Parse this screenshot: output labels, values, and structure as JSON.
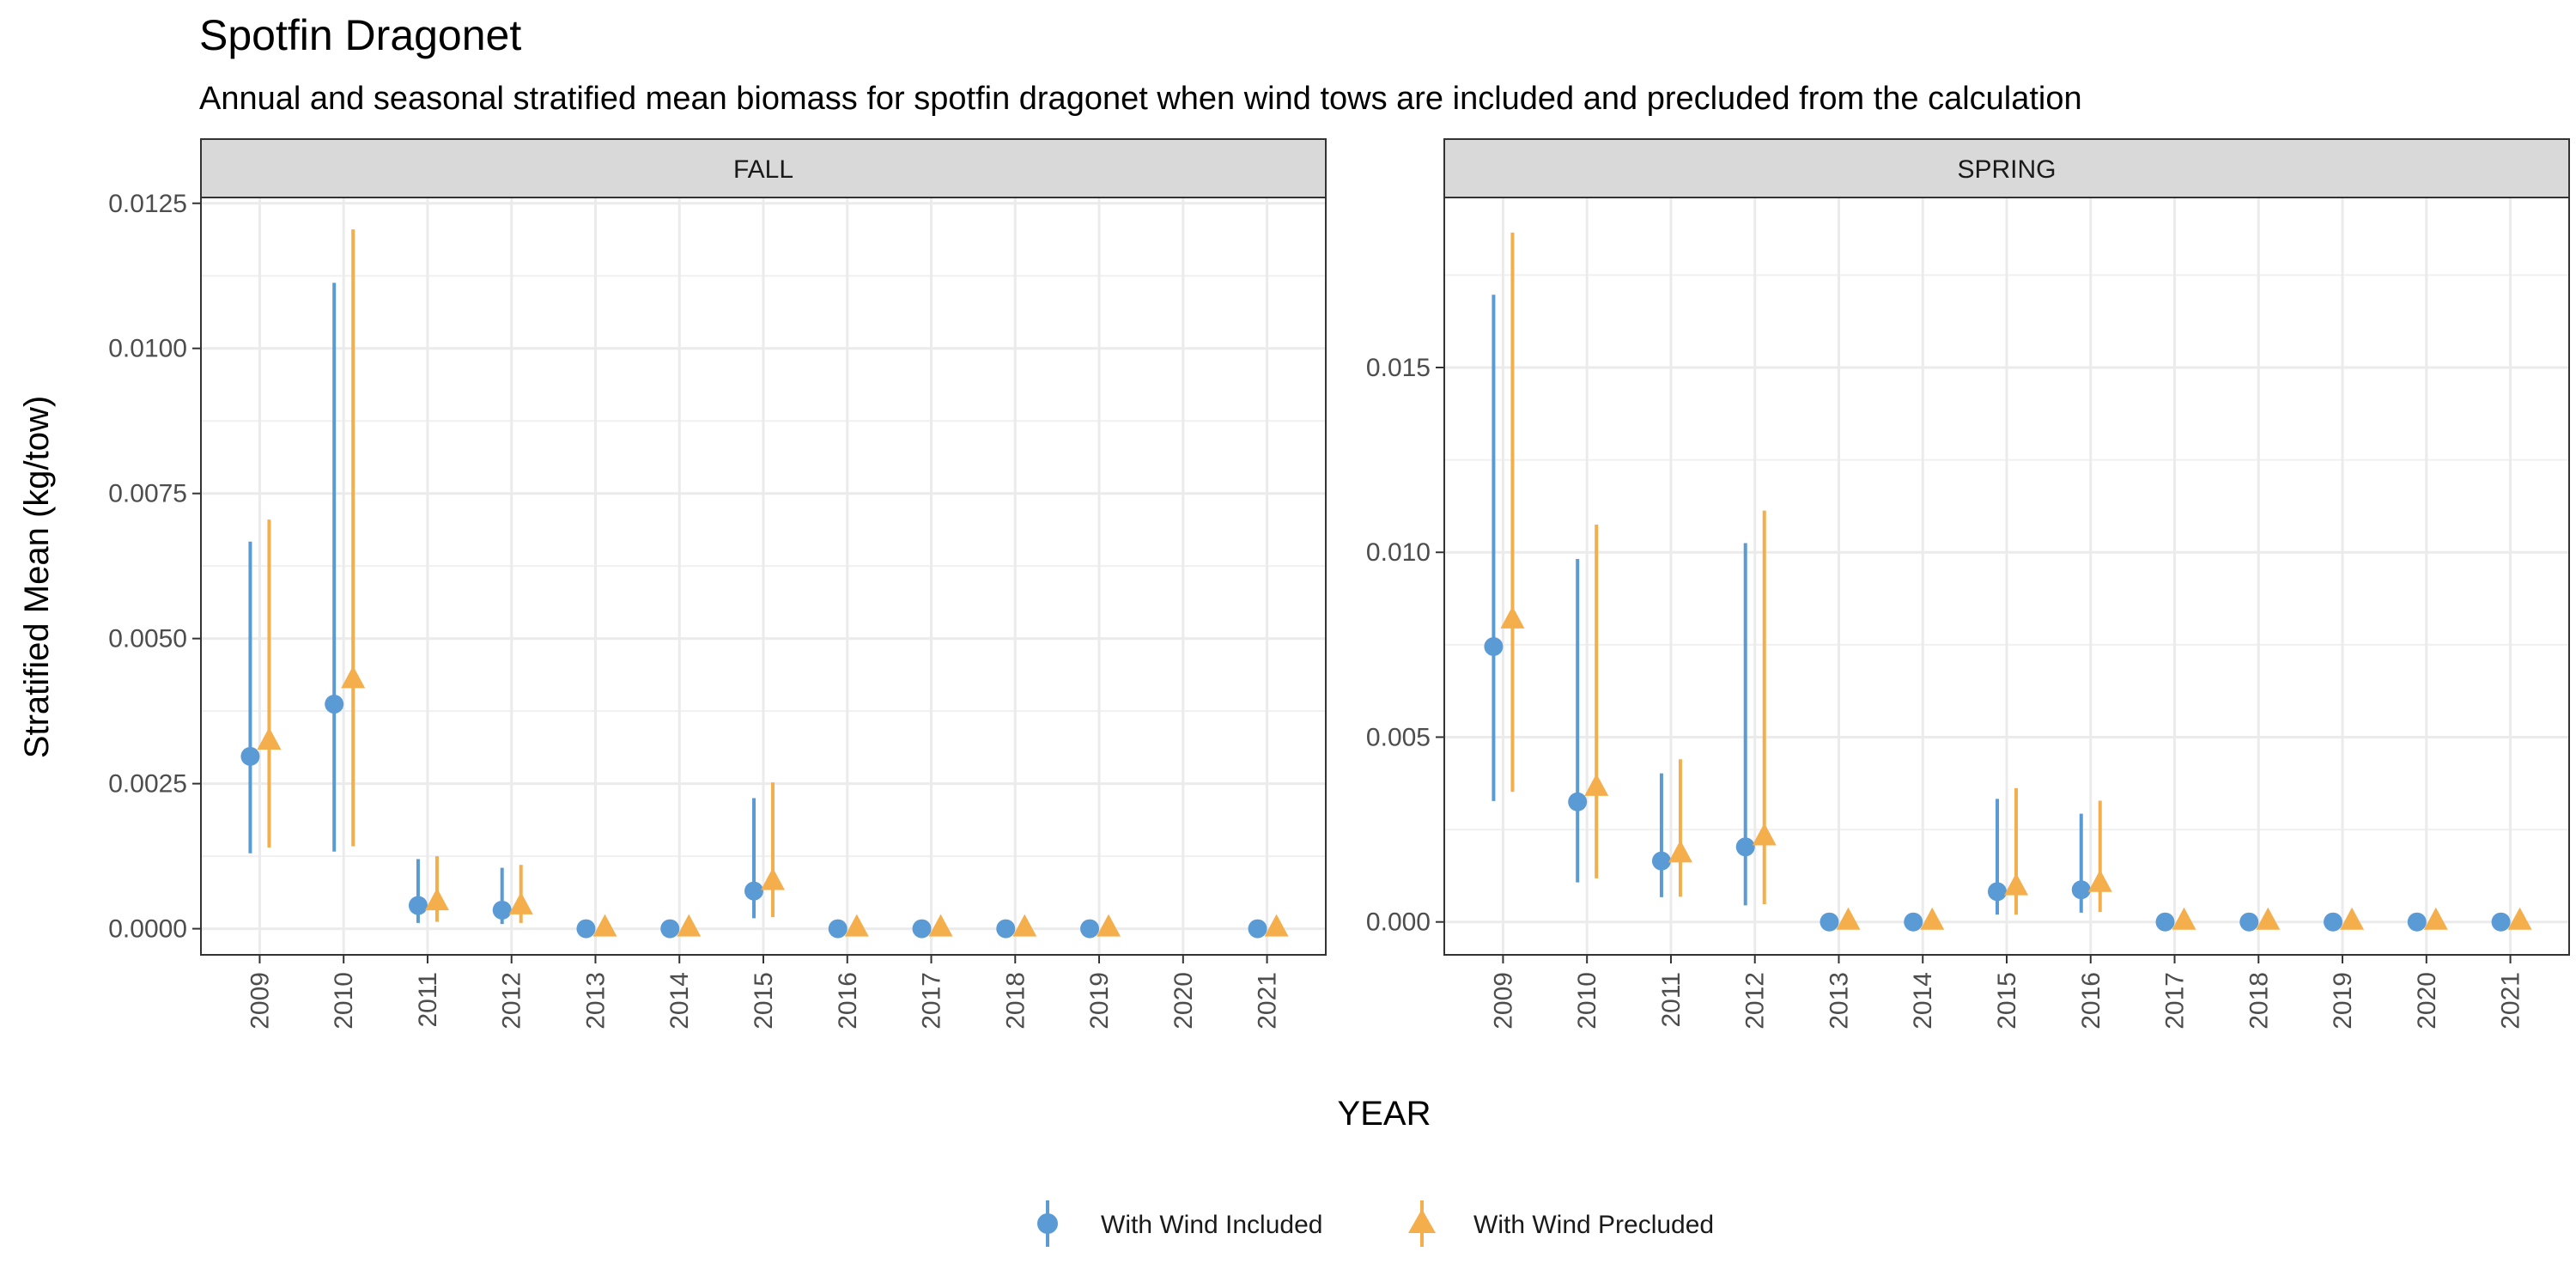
{
  "chart_data": {
    "type": "scatter",
    "title": "Spotfin Dragonet",
    "subtitle": "Annual and seasonal stratified mean biomass for spotfin dragonet when wind tows are included and precluded from the calculation",
    "xlabel": "YEAR",
    "ylabel": "Stratified Mean (kg/tow)",
    "grid": true,
    "legend_position": "bottom",
    "colors": {
      "included": "#5b9bd5",
      "precluded": "#f5ae4c"
    },
    "legend": [
      {
        "name": "With Wind Included",
        "marker": "circle"
      },
      {
        "name": "With Wind Precluded",
        "marker": "triangle"
      }
    ],
    "categories": [
      "2009",
      "2010",
      "2011",
      "2012",
      "2013",
      "2014",
      "2015",
      "2016",
      "2017",
      "2018",
      "2019",
      "2020",
      "2021"
    ],
    "panels": [
      {
        "name": "FALL",
        "ylim": [
          -0.00045,
          0.0126
        ],
        "yticks": [
          0,
          0.0025,
          0.005,
          0.0075,
          0.01,
          0.0125
        ],
        "ytick_labels": [
          "0.0000",
          "0.0025",
          "0.0050",
          "0.0075",
          "0.0100",
          "0.0125"
        ],
        "series": [
          {
            "name": "With Wind Included",
            "x": [
              "2009",
              "2010",
              "2011",
              "2012",
              "2013",
              "2014",
              "2015",
              "2016",
              "2017",
              "2018",
              "2019",
              "2021"
            ],
            "y": [
              0.00297,
              0.00387,
              0.0004,
              0.00032,
              0,
              0,
              0.00065,
              0,
              0,
              0,
              0,
              0
            ],
            "low": [
              0.0013,
              0.00133,
              0.0001,
              8e-05,
              0,
              0,
              0.00018,
              0,
              0,
              0,
              0,
              0
            ],
            "high": [
              0.00667,
              0.01113,
              0.0012,
              0.00105,
              0,
              0,
              0.00225,
              0,
              0,
              0,
              0,
              0
            ]
          },
          {
            "name": "With Wind Precluded",
            "x": [
              "2009",
              "2010",
              "2011",
              "2012",
              "2013",
              "2014",
              "2015",
              "2016",
              "2017",
              "2018",
              "2019",
              "2021"
            ],
            "y": [
              0.00322,
              0.00428,
              0.00045,
              0.00038,
              0,
              0,
              0.0008,
              0,
              0,
              0,
              0,
              0
            ],
            "low": [
              0.0014,
              0.00142,
              0.00012,
              0.0001,
              0,
              0,
              0.0002,
              0,
              0,
              0,
              0,
              0
            ],
            "high": [
              0.00705,
              0.01205,
              0.00125,
              0.0011,
              0,
              0,
              0.00252,
              0,
              0,
              0,
              0,
              0
            ]
          }
        ]
      },
      {
        "name": "SPRING",
        "ylim": [
          -0.00089,
          0.0196
        ],
        "yticks": [
          0,
          0.005,
          0.01,
          0.015
        ],
        "ytick_labels": [
          "0.000",
          "0.005",
          "0.010",
          "0.015"
        ],
        "series": [
          {
            "name": "With Wind Included",
            "x": [
              "2009",
              "2010",
              "2011",
              "2012",
              "2013",
              "2014",
              "2015",
              "2016",
              "2017",
              "2018",
              "2019",
              "2020",
              "2021"
            ],
            "y": [
              0.00745,
              0.00325,
              0.00165,
              0.00203,
              0,
              0,
              0.00082,
              0.00087,
              0,
              0,
              0,
              0,
              0
            ],
            "low": [
              0.00327,
              0.00107,
              0.00067,
              0.00045,
              0,
              0,
              0.0002,
              0.00025,
              0,
              0,
              0,
              0,
              0
            ],
            "high": [
              0.01697,
              0.00982,
              0.00402,
              0.01025,
              0,
              0,
              0.00333,
              0.00293,
              0,
              0,
              0,
              0,
              0
            ]
          },
          {
            "name": "With Wind Precluded",
            "x": [
              "2009",
              "2010",
              "2011",
              "2012",
              "2013",
              "2014",
              "2015",
              "2016",
              "2017",
              "2018",
              "2019",
              "2020",
              "2021"
            ],
            "y": [
              0.00815,
              0.00362,
              0.00182,
              0.00228,
              0,
              0,
              0.00093,
              0.00102,
              0,
              0,
              0,
              0,
              0
            ],
            "low": [
              0.00352,
              0.00118,
              0.00068,
              0.00048,
              0,
              0,
              0.0002,
              0.00027,
              0,
              0,
              0,
              0,
              0
            ],
            "high": [
              0.01865,
              0.01075,
              0.0044,
              0.01113,
              0,
              0,
              0.00362,
              0.00328,
              0,
              0,
              0,
              0,
              0
            ]
          }
        ]
      }
    ]
  }
}
